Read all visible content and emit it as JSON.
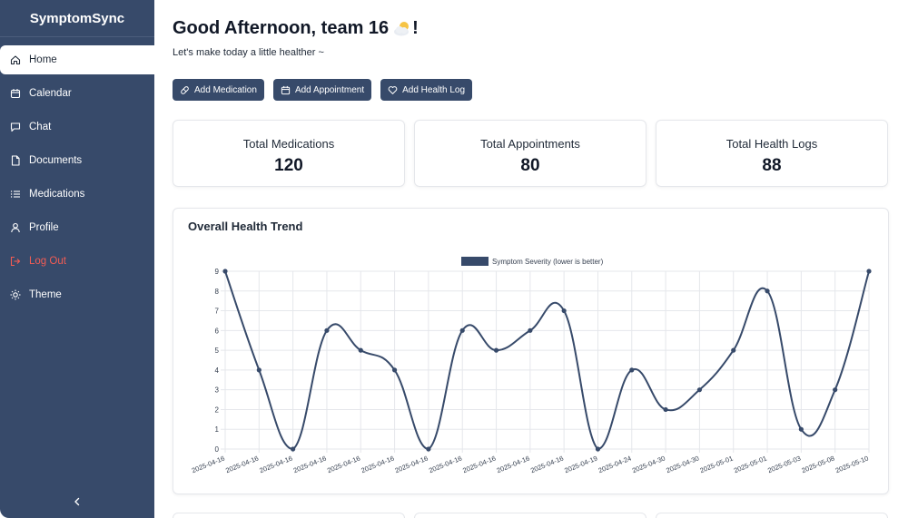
{
  "app": {
    "brand": "SymptomSync"
  },
  "sidebar": {
    "items": [
      {
        "label": "Home",
        "icon": "home-icon"
      },
      {
        "label": "Calendar",
        "icon": "calendar-icon"
      },
      {
        "label": "Chat",
        "icon": "chat-icon"
      },
      {
        "label": "Documents",
        "icon": "document-icon"
      },
      {
        "label": "Medications",
        "icon": "list-icon"
      },
      {
        "label": "Profile",
        "icon": "user-icon"
      },
      {
        "label": "Log Out",
        "icon": "logout-icon"
      },
      {
        "label": "Theme",
        "icon": "sun-icon"
      }
    ],
    "active": "Home",
    "collapse_icon": "chevron-left-icon"
  },
  "header": {
    "greeting": "Good Afternoon, team 16",
    "greeting_suffix": "!",
    "greeting_icon": "sun-behind-cloud-icon",
    "subtitle": "Let's make today a little healther ~"
  },
  "actions": [
    {
      "label": "Add Medication",
      "icon": "pill-icon"
    },
    {
      "label": "Add Appointment",
      "icon": "calendar-icon"
    },
    {
      "label": "Add Health Log",
      "icon": "heart-icon"
    }
  ],
  "stats": [
    {
      "label": "Total Medications",
      "value": "120"
    },
    {
      "label": "Total Appointments",
      "value": "80"
    },
    {
      "label": "Total Health Logs",
      "value": "88"
    }
  ],
  "chart_card": {
    "title": "Overall Health Trend"
  },
  "colors": {
    "sidebar": "#374a6a",
    "accent": "#374a6a",
    "logout": "#f25c54",
    "line": "#374a6a"
  },
  "chart_data": {
    "type": "line",
    "title": "",
    "xlabel": "",
    "ylabel": "",
    "ylim": [
      0,
      9
    ],
    "yticks": [
      0,
      1,
      2,
      3,
      4,
      5,
      6,
      7,
      8,
      9
    ],
    "grid": true,
    "legend_position": "top-center",
    "categories": [
      "2025-04-16",
      "2025-04-16",
      "2025-04-16",
      "2025-04-16",
      "2025-04-16",
      "2025-04-16",
      "2025-04-16",
      "2025-04-16",
      "2025-04-16",
      "2025-04-16",
      "2025-04-16",
      "2025-04-19",
      "2025-04-24",
      "2025-04-30",
      "2025-04-30",
      "2025-05-01",
      "2025-05-01",
      "2025-05-03",
      "2025-05-08",
      "2025-05-10"
    ],
    "series": [
      {
        "name": "Symptom Severity (lower is better)",
        "values": [
          9,
          4,
          0,
          6,
          5,
          4,
          0,
          6,
          5,
          6,
          7,
          0,
          4,
          2,
          3,
          5,
          8,
          1,
          3,
          9
        ]
      }
    ]
  }
}
